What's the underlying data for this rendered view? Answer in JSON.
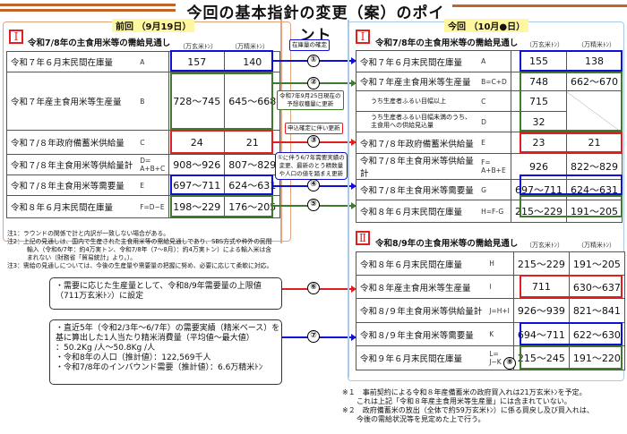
{
  "title": "今回の基本指針の変更（案）のポイント",
  "colors": {
    "blue": "#1010d0",
    "green": "#3f7a2f",
    "red": "#e02020",
    "orange": "#c0642a"
  },
  "prev": {
    "badge": "前回 （9月19日）",
    "roman": "Ⅰ",
    "heading": "令和7/8年の主食用米等の需給見通し",
    "unit1": "（万玄米ﾄﾝ）",
    "unit2": "（万精米ﾄﾝ）",
    "rows": [
      {
        "label": "令和７年６月末民間在庫量",
        "code": "A",
        "v1": "157",
        "v2": "140"
      },
      {
        "label": "令和７年産主食用米等生産量",
        "code": "B",
        "v1": "728～745",
        "v2": "645～668"
      },
      {
        "label": "令和７/８年政府備蓄米供給量",
        "code": "C",
        "v1": "24",
        "v2": "21"
      },
      {
        "label": "令和７/８年主食用米等供給量計",
        "code": "D=\nA+B+C",
        "v1": "908～926",
        "v2": "807～829"
      },
      {
        "label": "令和７/８年主食用米等需要量",
        "code": "E",
        "v1": "697～711",
        "v2": "624～631"
      },
      {
        "label": "令和８年６月末民間在庫量",
        "code": "F=D−E",
        "v1": "198～229",
        "v2": "176～205"
      }
    ]
  },
  "notes": [
    "注1：ラウンドの関係で計と内訳が一致しない場合がある。",
    "注2：上記の見通しは、国内で生産された主食用米等の需給見通しであり、SBS方式や枠外の民間輸入（令和6/7年：約4万実トン、令和7/8年（7～8月）：約4万実トン）による輸入米は含まれない（財務省「貿易統計」より。）。",
    "注3：需給の見通しについては、今後の生産量や需要量の把握に努め、必要に応じて柔軟に対応。"
  ],
  "annotations": {
    "a1": "在庫量の確定",
    "a2": "令和7年9月25日現在の\n予想収穫量に更新",
    "a3": "申込確定に伴い更新",
    "a4": "①に伴う6/7年需要実績の\n変更、最新のとう精数量\nや人口の値を踏まえ更新"
  },
  "circles": [
    "①",
    "②",
    "③",
    "④",
    "⑤",
    "⑥",
    "⑦",
    "⑧"
  ],
  "curr": {
    "badge": "今回 （10月●日）",
    "roman": "Ⅰ",
    "heading": "令和7/8年の主食用米等の需給見通し",
    "unit1": "（万玄米ﾄﾝ）",
    "unit2": "（万精米ﾄﾝ）",
    "rows": [
      {
        "label": "令和７年６月末民間在庫量",
        "code": "A",
        "v1": "155",
        "v2": "138"
      },
      {
        "label": "令和７年産主食用米等生産量",
        "code": "B=C+D",
        "v1": "748",
        "v2": "662～670"
      },
      {
        "label": "うち生産者ふるい目幅以上",
        "code": "C",
        "v1": "715",
        "v2": ""
      },
      {
        "label": "うち生産者ふるい目幅未満のうち、\n主食用への供給見込量",
        "code": "D",
        "v1": "32",
        "v2": ""
      },
      {
        "label": "令和７/８年政府備蓄米供給量",
        "code": "E",
        "v1": "23",
        "v2": "21"
      },
      {
        "label": "令和７/８年主食用米等供給量\n計",
        "code": "F=\nA+B+E",
        "v1": "926",
        "v2": "822～829"
      },
      {
        "label": "令和７/８年主食用米等需要量",
        "code": "G",
        "v1": "697～711",
        "v2": "624～631"
      },
      {
        "label": "令和８年６月末民間在庫量",
        "code": "H=F-G",
        "v1": "215～229",
        "v2": "191～205"
      }
    ]
  },
  "next": {
    "roman": "Ⅱ",
    "heading": "令和8/9年の主食用米等の需給見通し",
    "unit1": "（万玄米ﾄﾝ）",
    "unit2": "（万精米ﾄﾝ）",
    "rows": [
      {
        "label": "令和８年６月末民間在庫量",
        "code": "H",
        "v1": "215～229",
        "v2": "191～205"
      },
      {
        "label": "令和８年産主食用米等生産量",
        "code": "I",
        "v1": "711",
        "v2": "630～637"
      },
      {
        "label": "令和８/９年主食用米等供給量計",
        "code": "J=H+I",
        "v1": "926～939",
        "v2": "821～841"
      },
      {
        "label": "令和８/９年主食用米等需要量",
        "code": "K",
        "v1": "694～711",
        "v2": "622～630"
      },
      {
        "label": "令和９年６月末民間在庫量",
        "code": "L=\nJ−K",
        "v1": "215～245",
        "v2": "191～220"
      }
    ]
  },
  "box6": "・需要に応じた生産量として、令和8/9年需要量の上限値\n（711万玄米ﾄﾝ）に設定",
  "box7": "・直近5年（令和2/3年～6/7年）の需要実績（精米ベース）を\n基に算出した1人当たり精米消費量（平均値～最大値）\n：50.2Kg /人～50.8Kg /人\n・令和8年の人口（推計値）：122,569千人\n・令和7/8年のインバウンド需要（推計値）：6.6万精米ﾄﾝ",
  "footnotes": [
    "※１　事前契約による令和８年産備蓄米の政府買入れは21万玄米ﾄﾝを予定。\n　　これは上記「令和８年産主食用米等生産量」には含まれていない。",
    "※２　政府備蓄米の放出（全体で約59万玄米ﾄﾝ）に係る買戻し及び買入れは、\n　　今後の需給状況等を見定めた上で行う。"
  ]
}
